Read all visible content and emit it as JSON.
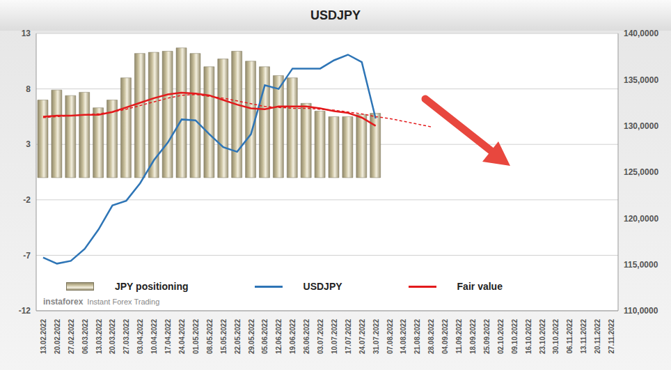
{
  "chart_data": {
    "type": "bar",
    "title": "USDJPY",
    "categories": [
      "13.02.2022",
      "20.02.2022",
      "27.02.2022",
      "06.03.2022",
      "13.03.2022",
      "20.03.2022",
      "27.03.2022",
      "03.04.2022",
      "10.04.2022",
      "17.04.2022",
      "24.04.2022",
      "01.05.2022",
      "08.05.2022",
      "15.05.2022",
      "22.05.2022",
      "29.05.2022",
      "05.06.2022",
      "12.06.2022",
      "19.06.2022",
      "26.06.2022",
      "03.07.2022",
      "10.07.2022",
      "17.07.2022",
      "24.07.2022",
      "31.07.2022",
      "07.08.2022",
      "14.08.2022",
      "21.08.2022",
      "28.08.2022",
      "04.09.2022",
      "11.09.2022",
      "18.09.2022",
      "25.09.2022",
      "02.10.2022",
      "09.10.2022",
      "16.10.2022",
      "23.10.2022",
      "30.10.2022",
      "06.11.2022",
      "13.11.2022",
      "20.11.2022",
      "27.11.2022"
    ],
    "series": [
      {
        "name": "JPY positioning",
        "type": "bar",
        "color": "#c8bf9c",
        "values": [
          7.0,
          7.9,
          7.4,
          7.7,
          6.3,
          7.0,
          9.0,
          11.2,
          11.3,
          11.4,
          11.7,
          11.2,
          10.0,
          10.7,
          11.4,
          10.5,
          10.0,
          9.2,
          9.0,
          6.7,
          6.0,
          5.5,
          5.5,
          5.7,
          5.8,
          null,
          null,
          null,
          null,
          null,
          null,
          null,
          null,
          null,
          null,
          null,
          null,
          null,
          null,
          null,
          null,
          null
        ]
      },
      {
        "name": "USDJPY",
        "type": "line",
        "axis": "y2",
        "color": "#2e75b6",
        "line_style": "solid",
        "values": [
          115750,
          115100,
          115400,
          116700,
          118800,
          121400,
          121900,
          123800,
          126300,
          128200,
          130700,
          130600,
          129100,
          127700,
          127200,
          129100,
          134400,
          134000,
          136200,
          136200,
          136200,
          137100,
          137700,
          136900,
          130800,
          null,
          null,
          null,
          null,
          null,
          null,
          null,
          null,
          null,
          null,
          null,
          null,
          null,
          null,
          null,
          null,
          null
        ]
      },
      {
        "name": "Fair value",
        "type": "line",
        "axis": "y2",
        "color": "#e31a1c",
        "line_style": "solid",
        "values": [
          131000,
          131100,
          131100,
          131200,
          131200,
          131500,
          132000,
          132500,
          133000,
          133400,
          133600,
          133500,
          133300,
          132800,
          132300,
          131900,
          131800,
          132100,
          132100,
          132100,
          131900,
          131600,
          131400,
          130900,
          130000,
          null,
          null,
          null,
          null,
          null,
          null,
          null,
          null,
          null,
          null,
          null,
          null,
          null,
          null,
          null,
          null,
          null
        ]
      },
      {
        "type": "line",
        "axis": "y2",
        "color": "#e31a1c",
        "line_style": "dashed",
        "values": [
          130900,
          131000,
          131100,
          131200,
          131300,
          131500,
          131800,
          132200,
          132600,
          133000,
          133300,
          133400,
          133200,
          133000,
          132700,
          132400,
          132100,
          132000,
          131900,
          131900,
          131800,
          131700,
          131500,
          131300,
          131000,
          130800,
          130500,
          130200,
          129900,
          null,
          null,
          null,
          null,
          null,
          null,
          null,
          null,
          null,
          null,
          null,
          null,
          null
        ]
      }
    ],
    "ylim": [
      -12,
      13
    ],
    "yticks": [
      -12,
      -7,
      -2,
      3,
      8,
      13
    ],
    "y2lim": [
      110000,
      140000
    ],
    "y2ticks": [
      {
        "value": 110000,
        "label": "110,0000"
      },
      {
        "value": 115000,
        "label": "115,0000"
      },
      {
        "value": 120000,
        "label": "120,0000"
      },
      {
        "value": 125000,
        "label": "125,0000"
      },
      {
        "value": 130000,
        "label": "130,0000"
      },
      {
        "value": 135000,
        "label": "135,0000"
      },
      {
        "value": 140000,
        "label": "140,0000"
      }
    ],
    "grid": true,
    "legend": "bottom left",
    "annotations": [
      "instaforex",
      "Instant Forex Trading"
    ]
  }
}
